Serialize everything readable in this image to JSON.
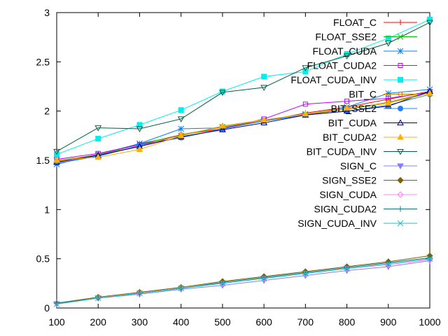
{
  "chart_data": {
    "type": "line",
    "title": "",
    "xlabel": "",
    "ylabel": "",
    "xlim": [
      100,
      1000
    ],
    "ylim": [
      0,
      3
    ],
    "x": [
      100,
      200,
      300,
      400,
      500,
      600,
      700,
      800,
      900,
      1000
    ],
    "xticks": [
      "100",
      "200",
      "300",
      "400",
      "500",
      "600",
      "700",
      "800",
      "900",
      "1000"
    ],
    "yticks": [
      "0",
      "0.5",
      "1",
      "1.5",
      "2",
      "2.5",
      "3"
    ],
    "grid": false,
    "legend": "top-right",
    "series": [
      {
        "name": "FLOAT_C",
        "color": "#ff0000",
        "marker": "plus",
        "values": [
          1.48,
          1.56,
          1.66,
          1.76,
          1.82,
          1.9,
          1.98,
          2.04,
          2.12,
          2.2
        ]
      },
      {
        "name": "FLOAT_SSE2",
        "color": "#00c000",
        "marker": "cross",
        "values": [
          1.5,
          1.55,
          1.67,
          1.75,
          1.84,
          1.91,
          1.97,
          2.02,
          2.08,
          2.19
        ]
      },
      {
        "name": "FLOAT_CUDA",
        "color": "#0080ff",
        "marker": "star",
        "values": [
          1.46,
          1.56,
          1.67,
          1.82,
          1.83,
          1.9,
          1.96,
          2.04,
          2.18,
          2.22
        ]
      },
      {
        "name": "FLOAT_CUDA2",
        "color": "#c000ff",
        "marker": "square",
        "values": [
          1.51,
          1.57,
          1.66,
          1.73,
          1.82,
          1.92,
          2.07,
          2.1,
          2.13,
          2.19
        ]
      },
      {
        "name": "FLOAT_CUDA_INV",
        "color": "#00eeee",
        "marker": "filled-square",
        "values": [
          1.56,
          1.72,
          1.86,
          2.01,
          2.2,
          2.35,
          2.4,
          2.58,
          2.74,
          2.93
        ]
      },
      {
        "name": "BIT_C",
        "color": "#c08000",
        "marker": "circle",
        "values": [
          1.49,
          1.56,
          1.64,
          1.76,
          1.84,
          1.9,
          1.96,
          2.02,
          2.09,
          2.19
        ]
      },
      {
        "name": "BIT_SSE2",
        "color": "#2080ff",
        "marker": "filled-circle",
        "values": [
          1.47,
          1.54,
          1.65,
          1.73,
          1.82,
          1.9,
          1.96,
          2.0,
          2.06,
          2.17
        ]
      },
      {
        "name": "BIT_CUDA",
        "color": "#000080",
        "marker": "triangle",
        "values": [
          1.48,
          1.55,
          1.64,
          1.74,
          1.81,
          1.88,
          1.96,
          2.0,
          2.05,
          2.2
        ]
      },
      {
        "name": "BIT_CUDA2",
        "color": "#ffb000",
        "marker": "filled-triangle",
        "values": [
          1.5,
          1.53,
          1.61,
          1.75,
          1.85,
          1.91,
          1.97,
          2.03,
          2.08,
          2.18
        ]
      },
      {
        "name": "BIT_CUDA_INV",
        "color": "#006040",
        "marker": "inv-triangle",
        "values": [
          1.59,
          1.83,
          1.82,
          1.92,
          2.19,
          2.24,
          2.44,
          2.56,
          2.69,
          2.9
        ]
      },
      {
        "name": "SIGN_C",
        "color": "#8080ff",
        "marker": "filled-inv-triangle",
        "values": [
          0.04,
          0.1,
          0.14,
          0.19,
          0.23,
          0.28,
          0.33,
          0.38,
          0.42,
          0.48
        ]
      },
      {
        "name": "SIGN_SSE2",
        "color": "#806000",
        "marker": "filled-diamond",
        "values": [
          0.05,
          0.11,
          0.16,
          0.21,
          0.27,
          0.32,
          0.37,
          0.42,
          0.47,
          0.53
        ]
      },
      {
        "name": "SIGN_CUDA",
        "color": "#ff80ff",
        "marker": "diamond",
        "values": [
          0.05,
          0.1,
          0.15,
          0.2,
          0.25,
          0.3,
          0.35,
          0.4,
          0.44,
          0.49
        ]
      },
      {
        "name": "SIGN_CUDA2",
        "color": "#008080",
        "marker": "plus",
        "values": [
          0.05,
          0.1,
          0.15,
          0.2,
          0.26,
          0.31,
          0.36,
          0.41,
          0.46,
          0.51
        ]
      },
      {
        "name": "SIGN_CUDA_INV",
        "color": "#20c0c0",
        "marker": "cross",
        "values": [
          0.04,
          0.1,
          0.15,
          0.2,
          0.25,
          0.3,
          0.35,
          0.4,
          0.45,
          0.5
        ]
      }
    ]
  }
}
